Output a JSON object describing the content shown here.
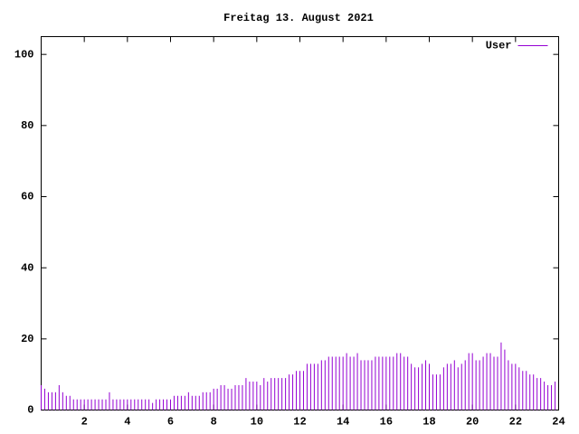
{
  "chart_data": {
    "type": "impulse",
    "title": "Freitag 13. August 2021",
    "x": [
      0,
      10,
      20,
      30,
      40,
      50,
      60,
      70,
      80,
      90,
      100,
      110,
      120,
      130,
      140,
      150,
      160,
      170,
      180,
      190,
      200,
      210,
      220,
      230,
      240,
      250,
      260,
      270,
      280,
      290,
      300,
      310,
      320,
      330,
      340,
      350,
      360,
      370,
      380,
      390,
      400,
      410,
      420,
      430,
      440,
      450,
      460,
      470,
      480,
      490,
      500,
      510,
      520,
      530,
      540,
      550,
      560,
      570,
      580,
      590,
      600,
      610,
      620,
      630,
      640,
      650,
      660,
      670,
      680,
      690,
      700,
      710,
      720,
      730,
      740,
      750,
      760,
      770,
      780,
      790,
      800,
      810,
      820,
      830,
      840,
      850,
      860,
      870,
      880,
      890,
      900,
      910,
      920,
      930,
      940,
      950,
      960,
      970,
      980,
      990,
      1000,
      1010,
      1020,
      1030,
      1040,
      1050,
      1060,
      1070,
      1080,
      1090,
      1100,
      1110,
      1120,
      1130,
      1140,
      1150,
      1160,
      1170,
      1180,
      1190,
      1200,
      1210,
      1220,
      1230,
      1240,
      1250,
      1260,
      1270,
      1280,
      1290,
      1300,
      1310,
      1320,
      1330,
      1340,
      1350,
      1360,
      1370,
      1380,
      1390,
      1400,
      1410,
      1420,
      1430
    ],
    "series": [
      {
        "name": "User",
        "color": "#9400d3",
        "values": [
          7,
          6,
          5,
          5,
          5,
          7,
          5,
          4,
          4,
          3,
          3,
          3,
          3,
          3,
          3,
          3,
          3,
          3,
          3,
          5,
          3,
          3,
          3,
          3,
          3,
          3,
          3,
          3,
          3,
          3,
          3,
          2,
          3,
          3,
          3,
          3,
          3,
          4,
          4,
          4,
          4,
          5,
          4,
          4,
          4,
          5,
          5,
          5,
          6,
          6,
          7,
          7,
          6,
          6,
          7,
          7,
          7,
          9,
          8,
          8,
          8,
          7,
          9,
          8,
          9,
          9,
          9,
          9,
          9,
          10,
          10,
          11,
          11,
          11,
          13,
          13,
          13,
          13,
          14,
          14,
          15,
          15,
          15,
          15,
          15,
          16,
          15,
          15,
          16,
          14,
          14,
          14,
          14,
          15,
          15,
          15,
          15,
          15,
          15,
          16,
          16,
          15,
          15,
          13,
          12,
          12,
          13,
          14,
          13,
          10,
          10,
          10,
          12,
          13,
          13,
          14,
          12,
          13,
          14,
          16,
          16,
          14,
          14,
          15,
          16,
          16,
          15,
          15,
          19,
          17,
          14,
          13,
          13,
          12,
          11,
          11,
          10,
          10,
          9,
          9,
          8,
          7,
          7,
          8
        ]
      }
    ],
    "xlim": [
      0,
      1440
    ],
    "xticks": [
      {
        "value": 120,
        "label": "2"
      },
      {
        "value": 240,
        "label": "4"
      },
      {
        "value": 360,
        "label": "6"
      },
      {
        "value": 480,
        "label": "8"
      },
      {
        "value": 600,
        "label": "10"
      },
      {
        "value": 720,
        "label": "12"
      },
      {
        "value": 840,
        "label": "14"
      },
      {
        "value": 960,
        "label": "16"
      },
      {
        "value": 1080,
        "label": "18"
      },
      {
        "value": 1200,
        "label": "20"
      },
      {
        "value": 1320,
        "label": "22"
      },
      {
        "value": 1440,
        "label": "24"
      }
    ],
    "ylim": [
      0,
      105
    ],
    "yticks": [
      0,
      20,
      40,
      60,
      80,
      100
    ],
    "legend": "top-right"
  }
}
